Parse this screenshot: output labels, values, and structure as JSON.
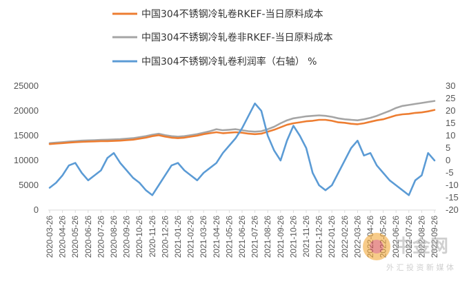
{
  "chart_data": {
    "type": "line",
    "legend": [
      {
        "name": "中国304不锈钢冷轧卷RKEF-当日原料成本",
        "color": "#ED7D31"
      },
      {
        "name": "中国304不锈钢冷轧卷非RKEF-当日原料成本",
        "color": "#A5A5A5"
      },
      {
        "name": "中国304不锈钢冷轧卷利润率（右轴） %",
        "color": "#5B9BD5"
      }
    ],
    "legend_placement": "top",
    "grid": false,
    "y_left": {
      "min": 0,
      "max": 25000,
      "ticks": [
        "0",
        "5000",
        "10000",
        "15000",
        "20000",
        "25000"
      ]
    },
    "y_right": {
      "min": -20,
      "max": 30,
      "ticks": [
        "-20",
        "-15",
        "-10",
        "-5",
        "0",
        "5",
        "10",
        "15",
        "20",
        "25",
        "30"
      ]
    },
    "x_tick_labels": [
      "2020-03-26",
      "2020-04-26",
      "2020-05-26",
      "2020-06-26",
      "2020-07-26",
      "2020-08-26",
      "2020-09-26",
      "2020-10-26",
      "2020-11-26",
      "2020-12-26",
      "2021-01-26",
      "2021-02-26",
      "2021-03-26",
      "2021-04-26",
      "2021-05-26",
      "2021-06-26",
      "2021-07-26",
      "2021-08-26",
      "2021-09-26",
      "2021-10-26",
      "2021-11-26",
      "2021-12-26",
      "2022-01-26",
      "2022-02-26",
      "2022-03-26",
      "2022-04-26",
      "2022-05-26",
      "2022-06-26",
      "2022-07-26",
      "2022-08-26",
      "2022-09-26"
    ],
    "series": [
      {
        "name": "中国304不锈钢冷轧卷RKEF-当日原料成本",
        "axis": "left",
        "color": "#ED7D31",
        "x": [
          0,
          0.5,
          1,
          1.5,
          2,
          2.5,
          3,
          3.5,
          4,
          4.5,
          5,
          5.5,
          6,
          6.5,
          7,
          7.5,
          8,
          8.5,
          9,
          9.5,
          10,
          10.5,
          11,
          11.5,
          12,
          12.5,
          13,
          13.5,
          14,
          14.5,
          15,
          15.5,
          16,
          16.5,
          17,
          17.5,
          18,
          18.5,
          19,
          19.5,
          20,
          20.5,
          21,
          21.5,
          22,
          22.5,
          23,
          23.5,
          24,
          24.5,
          25,
          25.5,
          26,
          26.5,
          27,
          27.5,
          28,
          28.5,
          29,
          29.5,
          30
        ],
        "values": [
          13300,
          13400,
          13500,
          13600,
          13700,
          13750,
          13800,
          13850,
          13900,
          13900,
          13950,
          14000,
          14100,
          14200,
          14400,
          14600,
          14900,
          15100,
          14800,
          14600,
          14500,
          14600,
          14800,
          15000,
          15300,
          15500,
          15700,
          15500,
          15600,
          15700,
          15600,
          15400,
          15300,
          15400,
          15800,
          16200,
          16700,
          17200,
          17500,
          17700,
          17900,
          18000,
          18200,
          18200,
          18000,
          17700,
          17600,
          17400,
          17300,
          17500,
          17800,
          18100,
          18300,
          18700,
          19100,
          19300,
          19400,
          19600,
          19700,
          19900,
          20200
        ]
      },
      {
        "name": "中国304不锈钢冷轧卷非RKEF-当日原料成本",
        "axis": "left",
        "color": "#A5A5A5",
        "x": [
          0,
          0.5,
          1,
          1.5,
          2,
          2.5,
          3,
          3.5,
          4,
          4.5,
          5,
          5.5,
          6,
          6.5,
          7,
          7.5,
          8,
          8.5,
          9,
          9.5,
          10,
          10.5,
          11,
          11.5,
          12,
          12.5,
          13,
          13.5,
          14,
          14.5,
          15,
          15.5,
          16,
          16.5,
          17,
          17.5,
          18,
          18.5,
          19,
          19.5,
          20,
          20.5,
          21,
          21.5,
          22,
          22.5,
          23,
          23.5,
          24,
          24.5,
          25,
          25.5,
          26,
          26.5,
          27,
          27.5,
          28,
          28.5,
          29,
          29.5,
          30
        ],
        "values": [
          13500,
          13600,
          13700,
          13800,
          13900,
          14000,
          14050,
          14100,
          14150,
          14200,
          14250,
          14300,
          14400,
          14500,
          14700,
          14900,
          15200,
          15400,
          15100,
          14900,
          14800,
          14900,
          15100,
          15300,
          15600,
          15900,
          16300,
          16100,
          16200,
          16300,
          16100,
          15900,
          15800,
          15900,
          16300,
          16800,
          17500,
          18100,
          18500,
          18700,
          18900,
          19000,
          19100,
          19000,
          18800,
          18500,
          18300,
          18200,
          18100,
          18300,
          18600,
          19000,
          19500,
          20000,
          20600,
          21000,
          21200,
          21400,
          21600,
          21800,
          22000
        ]
      },
      {
        "name": "中国304不锈钢冷轧卷利润率（右轴） %",
        "axis": "right",
        "color": "#5B9BD5",
        "x": [
          0,
          0.5,
          1,
          1.5,
          2,
          2.5,
          3,
          3.5,
          4,
          4.5,
          5,
          5.5,
          6,
          6.5,
          7,
          7.5,
          8,
          8.5,
          9,
          9.5,
          10,
          10.5,
          11,
          11.5,
          12,
          12.5,
          13,
          13.5,
          14,
          14.5,
          15,
          15.5,
          16,
          16.5,
          17,
          17.5,
          18,
          18.5,
          19,
          19.5,
          20,
          20.5,
          21,
          21.5,
          22,
          22.5,
          23,
          23.5,
          24,
          24.5,
          25,
          25.5,
          26,
          26.5,
          27,
          27.5,
          28,
          28.5,
          29,
          29.5,
          30
        ],
        "values": [
          -11,
          -9,
          -6,
          -2,
          -1,
          -5,
          -8,
          -6,
          -4,
          1,
          3,
          -1,
          -4,
          -7,
          -9,
          -12,
          -14,
          -10,
          -6,
          -2,
          -1,
          -4,
          -6,
          -8,
          -5,
          -3,
          -1,
          3,
          6,
          9,
          13,
          18,
          23,
          20,
          10,
          4,
          0,
          8,
          14,
          10,
          5,
          -5,
          -10,
          -12,
          -10,
          -5,
          0,
          5,
          8,
          2,
          3,
          -2,
          -5,
          -8,
          -10,
          -12,
          -14,
          -8,
          -6,
          3,
          0
        ]
      }
    ]
  },
  "watermark": {
    "name": "中金网",
    "sub": "外 汇 投 资 新 媒 体"
  },
  "colors": {
    "rkef": "#ED7D31",
    "non_rkef": "#A5A5A5",
    "profit": "#5B9BD5",
    "axis": "#D9D9D9",
    "tick": "#555555"
  }
}
